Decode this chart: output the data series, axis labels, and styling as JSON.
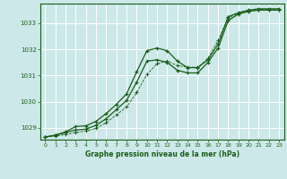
{
  "bg_color": "#cce8e8",
  "grid_color": "#ffffff",
  "line_color": "#1a5e1a",
  "title": "Graphe pression niveau de la mer (hPa)",
  "xlim": [
    -0.5,
    23.5
  ],
  "ylim": [
    1028.55,
    1033.75
  ],
  "xticks": [
    0,
    1,
    2,
    3,
    4,
    5,
    6,
    7,
    8,
    9,
    10,
    11,
    12,
    13,
    14,
    15,
    16,
    17,
    18,
    19,
    20,
    21,
    22,
    23
  ],
  "yticks": [
    1029,
    1030,
    1031,
    1032,
    1033
  ],
  "line1_x": [
    0,
    1,
    2,
    3,
    4,
    5,
    6,
    7,
    8,
    9,
    10,
    11,
    12,
    13,
    14,
    15,
    16,
    17,
    18,
    19,
    20,
    21,
    22,
    23
  ],
  "line1_y": [
    1028.65,
    1028.72,
    1028.85,
    1029.05,
    1029.08,
    1029.25,
    1029.55,
    1029.9,
    1030.3,
    1031.15,
    1031.95,
    1032.05,
    1031.95,
    1031.55,
    1031.3,
    1031.3,
    1031.6,
    1032.2,
    1033.25,
    1033.4,
    1033.5,
    1033.55,
    1033.55,
    1033.55
  ],
  "line2_x": [
    0,
    1,
    2,
    3,
    4,
    5,
    6,
    7,
    8,
    9,
    10,
    11,
    12,
    13,
    14,
    15,
    16,
    17,
    18,
    19,
    20,
    21,
    22,
    23
  ],
  "line2_y": [
    1028.65,
    1028.72,
    1028.82,
    1028.92,
    1028.95,
    1029.1,
    1029.35,
    1029.7,
    1030.05,
    1030.75,
    1031.55,
    1031.6,
    1031.5,
    1031.2,
    1031.1,
    1031.1,
    1031.5,
    1032.05,
    1033.1,
    1033.35,
    1033.45,
    1033.5,
    1033.5,
    1033.5
  ],
  "line3_x": [
    0,
    1,
    2,
    3,
    4,
    5,
    6,
    7,
    8,
    9,
    10,
    11,
    12,
    13,
    14,
    15,
    16,
    17,
    18,
    19,
    20,
    21,
    22,
    23
  ],
  "line3_y": [
    1028.65,
    1028.68,
    1028.75,
    1028.82,
    1028.88,
    1028.98,
    1029.2,
    1029.5,
    1029.8,
    1030.35,
    1031.05,
    1031.45,
    1031.55,
    1031.38,
    1031.32,
    1031.32,
    1031.65,
    1032.35,
    1033.2,
    1033.38,
    1033.48,
    1033.52,
    1033.52,
    1033.52
  ]
}
